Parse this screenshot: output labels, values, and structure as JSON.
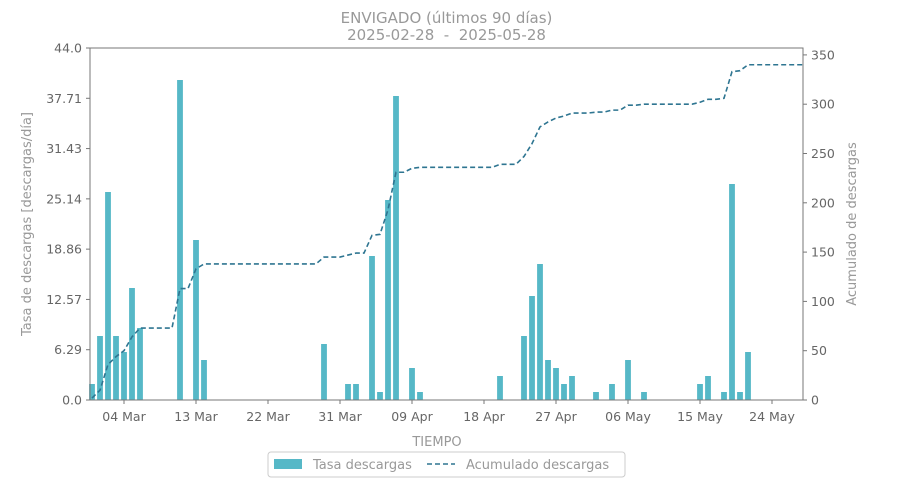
{
  "chart_data": {
    "type": "bar",
    "title": "ENVIGADO (últimos 90 días)",
    "subtitle": "2025-02-28  -  2025-05-28",
    "xlabel": "TIEMPO",
    "ylabel_left": "Tasa de descargas [descargas/día]",
    "ylabel_right": "Acumulado de descargas",
    "ylim_left": [
      0,
      44
    ],
    "ylim_right": [
      0,
      357
    ],
    "yticks_left": [
      "0.0",
      "6.29",
      "12.57",
      "18.86",
      "25.14",
      "31.43",
      "37.71",
      "44.0"
    ],
    "yticks_right": [
      "0",
      "50",
      "100",
      "150",
      "200",
      "250",
      "300",
      "350"
    ],
    "xticks": [
      {
        "day": 4,
        "label": "04 Mar"
      },
      {
        "day": 13,
        "label": "13 Mar"
      },
      {
        "day": 22,
        "label": "22 Mar"
      },
      {
        "day": 31,
        "label": "31 Mar"
      },
      {
        "day": 40,
        "label": "09 Apr"
      },
      {
        "day": 49,
        "label": "18 Apr"
      },
      {
        "day": 58,
        "label": "27 Apr"
      },
      {
        "day": 67,
        "label": "06 May"
      },
      {
        "day": 76,
        "label": "15 May"
      },
      {
        "day": 85,
        "label": "24 May"
      }
    ],
    "grid": false,
    "legend_position": "bottom-center",
    "series": [
      {
        "name": "Tasa descargas",
        "type": "bar",
        "color": "#56b8c7",
        "values": [
          2,
          8,
          26,
          8,
          6,
          14,
          9,
          0,
          0,
          0,
          0,
          40,
          0,
          20,
          5,
          0,
          0,
          0,
          0,
          0,
          0,
          0,
          0,
          0,
          0,
          0,
          0,
          0,
          0,
          7,
          0,
          0,
          2,
          2,
          0,
          18,
          1,
          25,
          38,
          0,
          4,
          1,
          0,
          0,
          0,
          0,
          0,
          0,
          0,
          0,
          0,
          3,
          0,
          0,
          8,
          13,
          17,
          5,
          4,
          2,
          3,
          0,
          0,
          1,
          0,
          2,
          0,
          5,
          0,
          1,
          0,
          0,
          0,
          0,
          0,
          0,
          2,
          3,
          0,
          1,
          27,
          1,
          6,
          0,
          0,
          0,
          0,
          0,
          0,
          0
        ]
      },
      {
        "name": "Acumulado descargas",
        "type": "line",
        "style": "dashed",
        "color": "#2e7591",
        "values": [
          2,
          10,
          36,
          44,
          50,
          64,
          73,
          73,
          73,
          73,
          73,
          113,
          113,
          133,
          138,
          138,
          138,
          138,
          138,
          138,
          138,
          138,
          138,
          138,
          138,
          138,
          138,
          138,
          138,
          145,
          145,
          145,
          147,
          149,
          149,
          167,
          168,
          193,
          231,
          231,
          235,
          236,
          236,
          236,
          236,
          236,
          236,
          236,
          236,
          236,
          236,
          239,
          239,
          239,
          247,
          260,
          277,
          282,
          286,
          288,
          291,
          291,
          291,
          292,
          292,
          294,
          294,
          299,
          299,
          300,
          300,
          300,
          300,
          300,
          300,
          300,
          302,
          305,
          305,
          306,
          333,
          334,
          340,
          340,
          340,
          340,
          340,
          340,
          340,
          340
        ]
      }
    ]
  }
}
